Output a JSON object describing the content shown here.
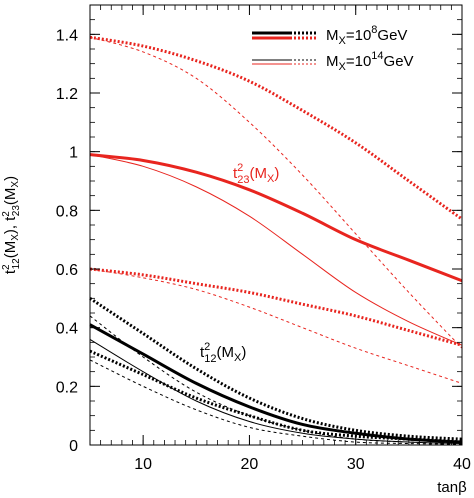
{
  "chart_data": {
    "type": "line",
    "xlabel": "tanβ",
    "ylabel": "t²₁₂(Mₓ), t²₂₃(Mₓ)",
    "ylabel_parts": {
      "a_base": "t",
      "a_sup": "2",
      "a_sub": "12",
      "a_arg": "(M",
      "a_argsub": "X",
      "a_close": "),",
      "b_base": "t",
      "b_sup": "2",
      "b_sub": "23",
      "b_arg": "(M",
      "b_argsub": "X",
      "b_close": ")"
    },
    "xlim": [
      5,
      40
    ],
    "ylim": [
      0,
      1.5
    ],
    "xticks": [
      10,
      20,
      30,
      40
    ],
    "yticks": [
      0,
      0.2,
      0.4,
      0.6,
      0.8,
      1.0,
      1.2,
      1.4
    ],
    "ytick_labels": [
      "0",
      "0.2",
      "0.4",
      "0.6",
      "0.8",
      "1",
      "1.2",
      "1.4"
    ],
    "legend": {
      "position": "top-right",
      "entries": [
        {
          "label_base": "M",
          "label_sub": "X",
          "label_eq": "=10",
          "label_sup": "8",
          "label_unit": "GeV",
          "weight": "thick"
        },
        {
          "label_base": "M",
          "label_sub": "X",
          "label_eq": "=10",
          "label_sup": "14",
          "label_unit": "GeV",
          "weight": "thin"
        }
      ]
    },
    "annotations": [
      {
        "base": "t",
        "sup": "2",
        "sub": "23",
        "arg": "(M",
        "argsub": "X",
        "close": ")",
        "color": "#e8251f"
      },
      {
        "base": "t",
        "sup": "2",
        "sub": "12",
        "arg": "(M",
        "argsub": "X",
        "close": ")",
        "color": "#000000"
      }
    ],
    "colors": {
      "t23": "#e8251f",
      "t12": "#000000"
    },
    "x": [
      5,
      10,
      15,
      20,
      25,
      30,
      35,
      40
    ],
    "series": [
      {
        "group": "t23",
        "weight": "thick",
        "style": "solid",
        "values": [
          0.99,
          0.97,
          0.93,
          0.87,
          0.79,
          0.7,
          0.63,
          0.56
        ]
      },
      {
        "group": "t23",
        "weight": "thick",
        "style": "dotted",
        "values": [
          1.39,
          1.36,
          1.31,
          1.24,
          1.14,
          1.03,
          0.9,
          0.77
        ]
      },
      {
        "group": "t23",
        "weight": "thick",
        "style": "dotted",
        "values": [
          0.6,
          0.58,
          0.55,
          0.52,
          0.48,
          0.44,
          0.39,
          0.34
        ]
      },
      {
        "group": "t23",
        "weight": "thin",
        "style": "solid",
        "values": [
          0.99,
          0.95,
          0.88,
          0.78,
          0.65,
          0.52,
          0.42,
          0.34
        ]
      },
      {
        "group": "t23",
        "weight": "thin",
        "style": "dotted",
        "values": [
          1.39,
          1.34,
          1.25,
          1.1,
          0.92,
          0.72,
          0.52,
          0.33
        ]
      },
      {
        "group": "t23",
        "weight": "thin",
        "style": "dotted",
        "values": [
          0.6,
          0.57,
          0.53,
          0.47,
          0.4,
          0.33,
          0.27,
          0.21
        ]
      },
      {
        "group": "t12",
        "weight": "thick",
        "style": "solid",
        "values": [
          0.41,
          0.31,
          0.21,
          0.13,
          0.07,
          0.04,
          0.02,
          0.01
        ]
      },
      {
        "group": "t12",
        "weight": "thick",
        "style": "dotted",
        "values": [
          0.5,
          0.38,
          0.26,
          0.16,
          0.09,
          0.05,
          0.03,
          0.02
        ]
      },
      {
        "group": "t12",
        "weight": "thick",
        "style": "dotted",
        "values": [
          0.32,
          0.24,
          0.16,
          0.1,
          0.05,
          0.03,
          0.02,
          0.01
        ]
      },
      {
        "group": "t12",
        "weight": "thin",
        "style": "solid",
        "values": [
          0.36,
          0.25,
          0.15,
          0.08,
          0.04,
          0.02,
          0.01,
          0.005
        ]
      },
      {
        "group": "t12",
        "weight": "thin",
        "style": "dotted",
        "values": [
          0.44,
          0.3,
          0.18,
          0.1,
          0.05,
          0.02,
          0.01,
          0.005
        ]
      },
      {
        "group": "t12",
        "weight": "thin",
        "style": "dotted",
        "values": [
          0.29,
          0.2,
          0.12,
          0.06,
          0.03,
          0.01,
          0.005,
          0.003
        ]
      }
    ]
  }
}
